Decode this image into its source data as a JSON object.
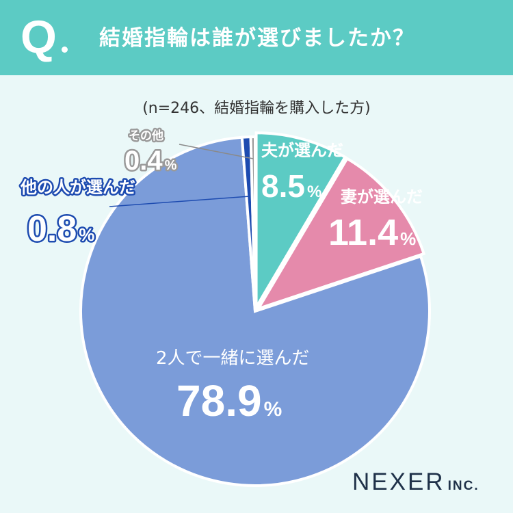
{
  "header": {
    "q_mark": "Q",
    "question": "結婚指輪は誰が選びましたか？"
  },
  "note": "(n=246、結婚指輪を購入した方)",
  "brand": {
    "name": "NEXER",
    "suffix": "INC."
  },
  "colors": {
    "header_bg": "#5ccbc4",
    "background": "#eaf8f8",
    "together": "#7b9cd9",
    "husband": "#5ccbc4",
    "wife": "#e58aab",
    "other_person": "#1d4bb0",
    "other": "#9a9a9a"
  },
  "chart_data": {
    "type": "pie",
    "title": "",
    "slices": [
      {
        "label": "夫が選んだ",
        "value": 8.5,
        "display": "8.5",
        "unit": "%",
        "color": "#5ccbc4"
      },
      {
        "label": "妻が選んだ",
        "value": 11.4,
        "display": "11.4",
        "unit": "%",
        "color": "#e58aab"
      },
      {
        "label": "2人で一緒に選んだ",
        "value": 78.9,
        "display": "78.9",
        "unit": "%",
        "color": "#7b9cd9"
      },
      {
        "label": "他の人が選んだ",
        "value": 0.8,
        "display": "0.8",
        "unit": "%",
        "color": "#1d4bb0"
      },
      {
        "label": "その他",
        "value": 0.4,
        "display": "0.4",
        "unit": "%",
        "color": "#9a9a9a"
      }
    ]
  }
}
